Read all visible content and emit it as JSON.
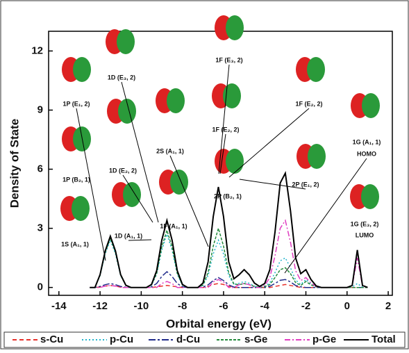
{
  "chart_data": {
    "type": "line",
    "xlabel": "Orbital energy (eV)",
    "ylabel": "Density of State",
    "x": [
      -12.5,
      -12.25,
      -12,
      -11.75,
      -11.5,
      -11.25,
      -11,
      -10.75,
      -10.5,
      -10.25,
      -10,
      -9.75,
      -9.5,
      -9.25,
      -9,
      -8.75,
      -8.5,
      -8.25,
      -8,
      -7.75,
      -7.5,
      -7.25,
      -7,
      -6.75,
      -6.5,
      -6.25,
      -6,
      -5.75,
      -5.5,
      -5.25,
      -5,
      -4.75,
      -4.5,
      -4.25,
      -4,
      -3.75,
      -3.5,
      -3.25,
      -3,
      -2.75,
      -2.5,
      -2.25,
      -2,
      -1.75,
      -1.5,
      -1.25,
      -1,
      -0.75,
      -0.5,
      -0.25,
      0,
      0.25,
      0.5,
      0.75,
      1
    ],
    "series": [
      {
        "name": "s-Cu",
        "color": "#e8302a",
        "dash": "6,4",
        "values": [
          0,
          0,
          0.02,
          0.07,
          0.1,
          0.07,
          0.02,
          0,
          0,
          0,
          0,
          0,
          0,
          0.03,
          0.07,
          0.1,
          0.07,
          0.03,
          0,
          0,
          0,
          0,
          0,
          0.05,
          0.15,
          0.2,
          0.15,
          0.05,
          0,
          0,
          0,
          0,
          0,
          0,
          0,
          0,
          0.05,
          0.1,
          0.15,
          0.1,
          0.05,
          0,
          0,
          0,
          0,
          0,
          0,
          0,
          0,
          0,
          0,
          0,
          0,
          0,
          0
        ]
      },
      {
        "name": "p-Cu",
        "color": "#22b4cc",
        "dash": "2,3",
        "values": [
          0,
          0,
          0.6,
          1.7,
          2.4,
          1.7,
          0.6,
          0.1,
          0,
          0,
          0,
          0,
          0.12,
          0.66,
          1.9,
          2.7,
          1.9,
          0.66,
          0.12,
          0,
          0,
          0,
          0.1,
          0.6,
          1.7,
          2.4,
          1.7,
          0.6,
          0.15,
          0.21,
          0.3,
          0.21,
          0.07,
          0,
          0.06,
          0.24,
          0.75,
          1.35,
          1.5,
          1.0,
          0.38,
          0.15,
          0.4,
          0.18,
          0.03,
          0,
          0,
          0,
          0,
          0,
          0,
          0.02,
          0.2,
          0.02,
          0
        ]
      },
      {
        "name": "d-Cu",
        "color": "#1f2a8a",
        "dash": "10,3,3,3",
        "values": [
          0,
          0,
          0.05,
          0.14,
          0.2,
          0.14,
          0.05,
          0.01,
          0,
          0,
          0,
          0,
          0.03,
          0.2,
          0.56,
          0.8,
          0.56,
          0.2,
          0.03,
          0,
          0,
          0,
          0.02,
          0.13,
          0.35,
          0.5,
          0.35,
          0.13,
          0.02,
          0,
          0,
          0,
          0,
          0,
          0,
          0.06,
          0.2,
          0.36,
          0.4,
          0.28,
          0.1,
          0.03,
          0,
          0,
          0,
          0,
          0,
          0,
          0,
          0,
          0,
          0,
          0,
          0,
          0
        ]
      },
      {
        "name": "s-Ge",
        "color": "#238a3c",
        "dash": "4,2",
        "values": [
          0,
          0,
          0.62,
          1.78,
          2.5,
          1.78,
          0.62,
          0.1,
          0,
          0,
          0,
          0,
          0.13,
          0.72,
          2.05,
          2.9,
          2.05,
          0.72,
          0.13,
          0,
          0,
          0,
          0.13,
          0.75,
          2.1,
          3.0,
          2.1,
          0.75,
          0.18,
          0.14,
          0.2,
          0.14,
          0.05,
          0,
          0.04,
          0.15,
          0.5,
          0.9,
          1.0,
          0.7,
          0.25,
          0.1,
          0.3,
          0.13,
          0.03,
          0,
          0,
          0,
          0,
          0,
          0,
          0,
          0,
          0,
          0
        ]
      },
      {
        "name": "p-Ge",
        "color": "#e03cc0",
        "dash": "8,3,2,3",
        "values": [
          0,
          0,
          0,
          0.07,
          0.1,
          0.07,
          0,
          0,
          0,
          0,
          0,
          0,
          0,
          0,
          0.2,
          0.3,
          0.2,
          0,
          0,
          0,
          0,
          0,
          0,
          0,
          0.28,
          0.4,
          0.28,
          0,
          0,
          0.14,
          0.2,
          0.14,
          0,
          0,
          0.1,
          0.5,
          1.6,
          3.0,
          3.4,
          2.3,
          0.85,
          0.35,
          0.5,
          0.22,
          0.05,
          0,
          0,
          0,
          0,
          0,
          0,
          0.08,
          1.5,
          0.08,
          0
        ]
      },
      {
        "name": "Total",
        "color": "#000000",
        "dash": "none",
        "values": [
          0,
          0,
          0.65,
          1.85,
          2.6,
          1.85,
          0.65,
          0.11,
          0,
          0,
          0,
          0,
          0.15,
          0.85,
          2.4,
          3.4,
          2.4,
          0.85,
          0.15,
          0,
          0,
          0,
          0.22,
          1.3,
          3.6,
          5.1,
          3.6,
          1.3,
          0.44,
          0.64,
          0.9,
          0.64,
          0.22,
          0.05,
          0.2,
          0.9,
          2.8,
          5.3,
          5.8,
          3.9,
          1.5,
          0.7,
          0.9,
          0.4,
          0.08,
          0,
          0,
          0,
          0,
          0,
          0,
          0.1,
          1.9,
          0.1,
          0
        ]
      }
    ],
    "xlim": [
      -14.5,
      2.2
    ],
    "xticks": [
      -14,
      -12,
      -10,
      -8,
      -6,
      -4,
      -2,
      0,
      2
    ],
    "ylim": [
      -0.4,
      13
    ],
    "yticks": [
      0,
      3,
      6,
      9,
      12
    ],
    "annotations": [
      "1P (E₁, 2)",
      "1D (E₃, 2)",
      "1P (B₂, 1)",
      "1S (A₁, 1)",
      "1D (E₂, 2)",
      "1D (A₁, 1)",
      "2S (A₁, 1)",
      "1F (A₁, 1)",
      "1F (E₃, 2)",
      "1F (E₂, 2)",
      "2P (B₂, 1)",
      "1F (E₂, 2)",
      "2P (E₁, 2)",
      "1G (A₁, 1)",
      "HOMO",
      "1G (E₃, 2)",
      "LUMO"
    ]
  }
}
